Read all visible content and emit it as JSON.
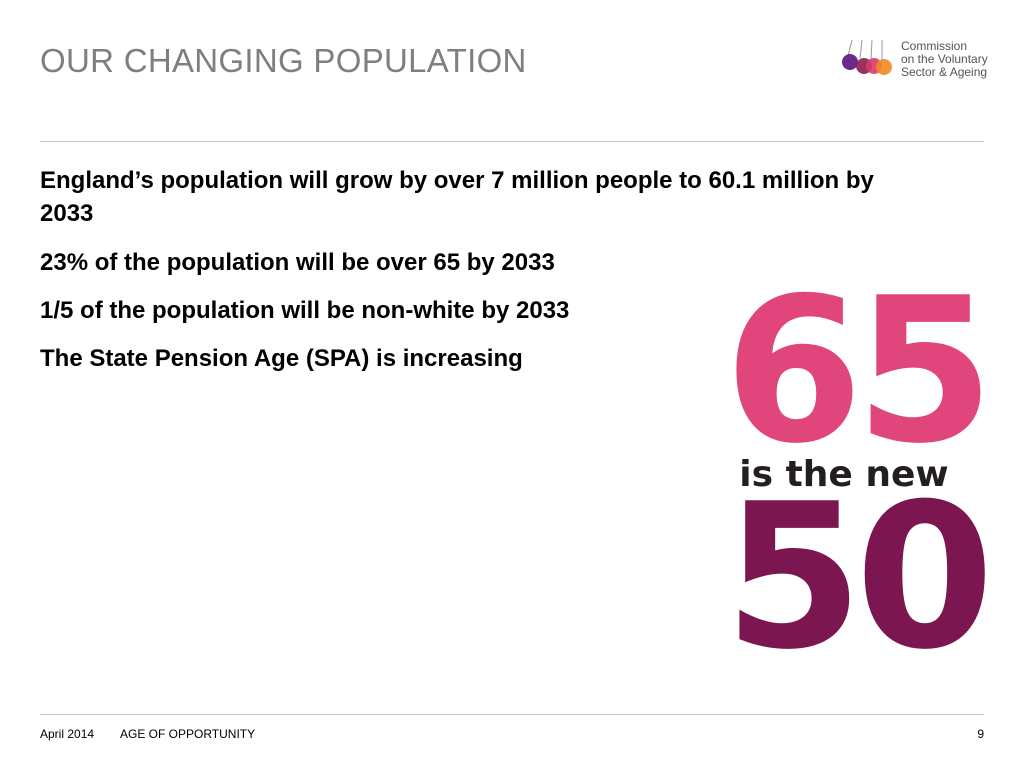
{
  "header": {
    "title": "OUR CHANGING POPULATION",
    "logo": [
      "Commission",
      "on the Voluntary",
      "Sector & Ageing"
    ]
  },
  "bullets": [
    "England’s population will grow by over 7 million people to 60.1 million by 2033",
    "23% of the population will be over 65 by 2033",
    "1/5 of the population will be non-white by 2033",
    "The State Pension Age (SPA) is increasing"
  ],
  "graphic": {
    "top": "65",
    "middle": "is the new",
    "bottom": "50"
  },
  "footer": {
    "date": "April 2014",
    "label": "AGE OF OPPORTUNITY",
    "page": "9"
  }
}
